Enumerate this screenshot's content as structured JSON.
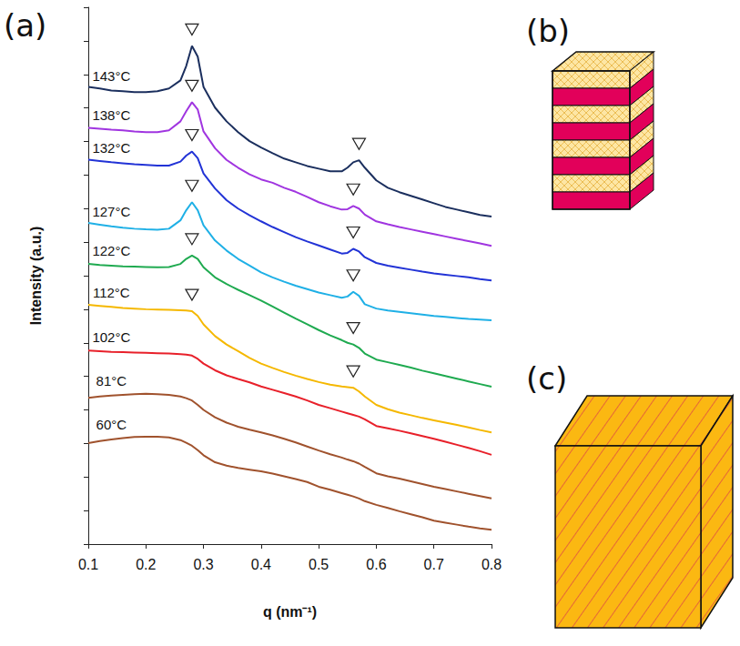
{
  "chart_data": {
    "type": "line",
    "xlabel": "q (nm⁻¹)",
    "ylabel": "Intensity (a.u.)",
    "x": [
      0.1,
      0.12,
      0.14,
      0.16,
      0.18,
      0.2,
      0.22,
      0.24,
      0.26,
      0.27,
      0.28,
      0.29,
      0.3,
      0.32,
      0.34,
      0.36,
      0.38,
      0.4,
      0.42,
      0.44,
      0.46,
      0.48,
      0.5,
      0.52,
      0.54,
      0.55,
      0.56,
      0.57,
      0.58,
      0.6,
      0.62,
      0.64,
      0.66,
      0.68,
      0.7,
      0.72,
      0.74,
      0.76,
      0.78,
      0.8
    ],
    "xlim": [
      0.1,
      0.8
    ],
    "xticks": [
      0.1,
      0.2,
      0.3,
      0.4,
      0.5,
      0.6,
      0.7,
      0.8
    ],
    "ylim": [
      0,
      16
    ],
    "yticks": [
      0,
      1,
      2,
      3,
      4,
      5,
      6,
      7,
      8,
      9,
      10,
      11,
      12,
      13,
      14,
      15,
      16
    ],
    "tick_labels": "x",
    "grid": false,
    "series": [
      {
        "name": "143°C",
        "color": "#1b2f5e",
        "peak_q": [
          0.28,
          0.57
        ],
        "values": [
          13.63,
          13.58,
          13.52,
          13.5,
          13.47,
          13.47,
          13.5,
          13.58,
          13.82,
          14.25,
          14.85,
          14.53,
          13.63,
          13.01,
          12.6,
          12.28,
          12.01,
          11.82,
          11.65,
          11.49,
          11.38,
          11.27,
          11.19,
          11.11,
          11.11,
          11.22,
          11.38,
          11.44,
          11.22,
          10.84,
          10.62,
          10.49,
          10.38,
          10.27,
          10.16,
          10.05,
          9.97,
          9.89,
          9.81,
          9.76
        ]
      },
      {
        "name": "138°C",
        "color": "#a035e0",
        "peak_q": [
          0.28,
          0.56
        ],
        "values": [
          12.41,
          12.38,
          12.35,
          12.33,
          12.3,
          12.28,
          12.28,
          12.33,
          12.6,
          12.9,
          13.17,
          12.95,
          12.3,
          11.8,
          11.45,
          11.22,
          11.02,
          10.87,
          10.77,
          10.62,
          10.5,
          10.35,
          10.19,
          10.07,
          9.97,
          9.98,
          10.08,
          10.0,
          9.82,
          9.62,
          9.53,
          9.45,
          9.38,
          9.31,
          9.24,
          9.17,
          9.1,
          9.03,
          8.96,
          8.89
        ]
      },
      {
        "name": "132°C",
        "color": "#2233d6",
        "peak_q": [
          0.28,
          0.56
        ],
        "values": [
          11.46,
          11.42,
          11.38,
          11.35,
          11.32,
          11.3,
          11.28,
          11.28,
          11.4,
          11.58,
          11.7,
          11.5,
          11.05,
          10.6,
          10.25,
          10.0,
          9.8,
          9.62,
          9.45,
          9.3,
          9.15,
          9.02,
          8.9,
          8.78,
          8.66,
          8.68,
          8.8,
          8.72,
          8.55,
          8.38,
          8.3,
          8.24,
          8.18,
          8.12,
          8.07,
          8.03,
          7.99,
          7.95,
          7.9,
          7.86
        ]
      },
      {
        "name": "127°C",
        "color": "#1fb0e6",
        "peak_q": [
          0.28,
          0.56
        ],
        "values": [
          9.57,
          9.52,
          9.47,
          9.43,
          9.4,
          9.38,
          9.37,
          9.4,
          9.65,
          9.95,
          10.19,
          9.95,
          9.5,
          9.05,
          8.75,
          8.5,
          8.3,
          8.1,
          7.95,
          7.82,
          7.7,
          7.6,
          7.5,
          7.42,
          7.34,
          7.38,
          7.52,
          7.4,
          7.15,
          7.02,
          6.96,
          6.92,
          6.88,
          6.84,
          6.8,
          6.77,
          6.74,
          6.71,
          6.69,
          6.67
        ]
      },
      {
        "name": "122°C",
        "color": "#1faa50",
        "peak_q": [
          0.28,
          0.56
        ],
        "values": [
          8.35,
          8.32,
          8.3,
          8.28,
          8.27,
          8.26,
          8.25,
          8.26,
          8.35,
          8.5,
          8.6,
          8.5,
          8.25,
          7.95,
          7.75,
          7.58,
          7.42,
          7.26,
          7.08,
          6.9,
          6.72,
          6.55,
          6.38,
          6.22,
          6.08,
          6.0,
          5.95,
          5.85,
          5.68,
          5.5,
          5.42,
          5.34,
          5.26,
          5.17,
          5.09,
          5.01,
          4.93,
          4.85,
          4.77,
          4.69
        ]
      },
      {
        "name": "112°C",
        "color": "#f5b800",
        "peak_q": [
          0.28,
          0.56
        ],
        "values": [
          7.13,
          7.1,
          7.07,
          7.04,
          7.02,
          7.0,
          6.99,
          6.98,
          6.97,
          6.96,
          6.94,
          6.8,
          6.55,
          6.2,
          5.95,
          5.75,
          5.55,
          5.38,
          5.25,
          5.13,
          5.02,
          4.92,
          4.83,
          4.75,
          4.7,
          4.68,
          4.66,
          4.55,
          4.4,
          4.15,
          4.02,
          3.92,
          3.84,
          3.76,
          3.69,
          3.62,
          3.55,
          3.48,
          3.4,
          3.33
        ]
      },
      {
        "name": "102°C",
        "color": "#e8202a",
        "values": [
          5.77,
          5.75,
          5.73,
          5.72,
          5.71,
          5.7,
          5.69,
          5.68,
          5.66,
          5.65,
          5.62,
          5.52,
          5.38,
          5.18,
          5.03,
          4.92,
          4.82,
          4.7,
          4.6,
          4.5,
          4.4,
          4.28,
          4.15,
          4.05,
          3.95,
          3.9,
          3.85,
          3.8,
          3.72,
          3.52,
          3.45,
          3.38,
          3.3,
          3.22,
          3.14,
          3.05,
          2.96,
          2.87,
          2.77,
          2.66
        ]
      },
      {
        "name": "81°C",
        "color": "#a0522d",
        "values": [
          4.36,
          4.4,
          4.43,
          4.45,
          4.47,
          4.48,
          4.47,
          4.45,
          4.4,
          4.35,
          4.28,
          4.15,
          4.0,
          3.78,
          3.62,
          3.5,
          3.41,
          3.33,
          3.24,
          3.14,
          3.03,
          2.91,
          2.79,
          2.68,
          2.58,
          2.52,
          2.47,
          2.4,
          2.3,
          2.11,
          2.02,
          1.95,
          1.87,
          1.79,
          1.71,
          1.64,
          1.57,
          1.5,
          1.43,
          1.36
        ]
      },
      {
        "name": "60°C",
        "color": "#a0522d",
        "values": [
          3.01,
          3.07,
          3.12,
          3.16,
          3.19,
          3.2,
          3.2,
          3.18,
          3.1,
          3.02,
          2.93,
          2.8,
          2.65,
          2.44,
          2.34,
          2.27,
          2.22,
          2.17,
          2.1,
          2.02,
          1.94,
          1.85,
          1.71,
          1.62,
          1.52,
          1.47,
          1.42,
          1.36,
          1.28,
          1.17,
          1.08,
          0.98,
          0.89,
          0.8,
          0.7,
          0.64,
          0.58,
          0.52,
          0.47,
          0.43
        ]
      }
    ]
  },
  "panel_labels": [
    "(a)",
    "(b)",
    "(c)"
  ]
}
